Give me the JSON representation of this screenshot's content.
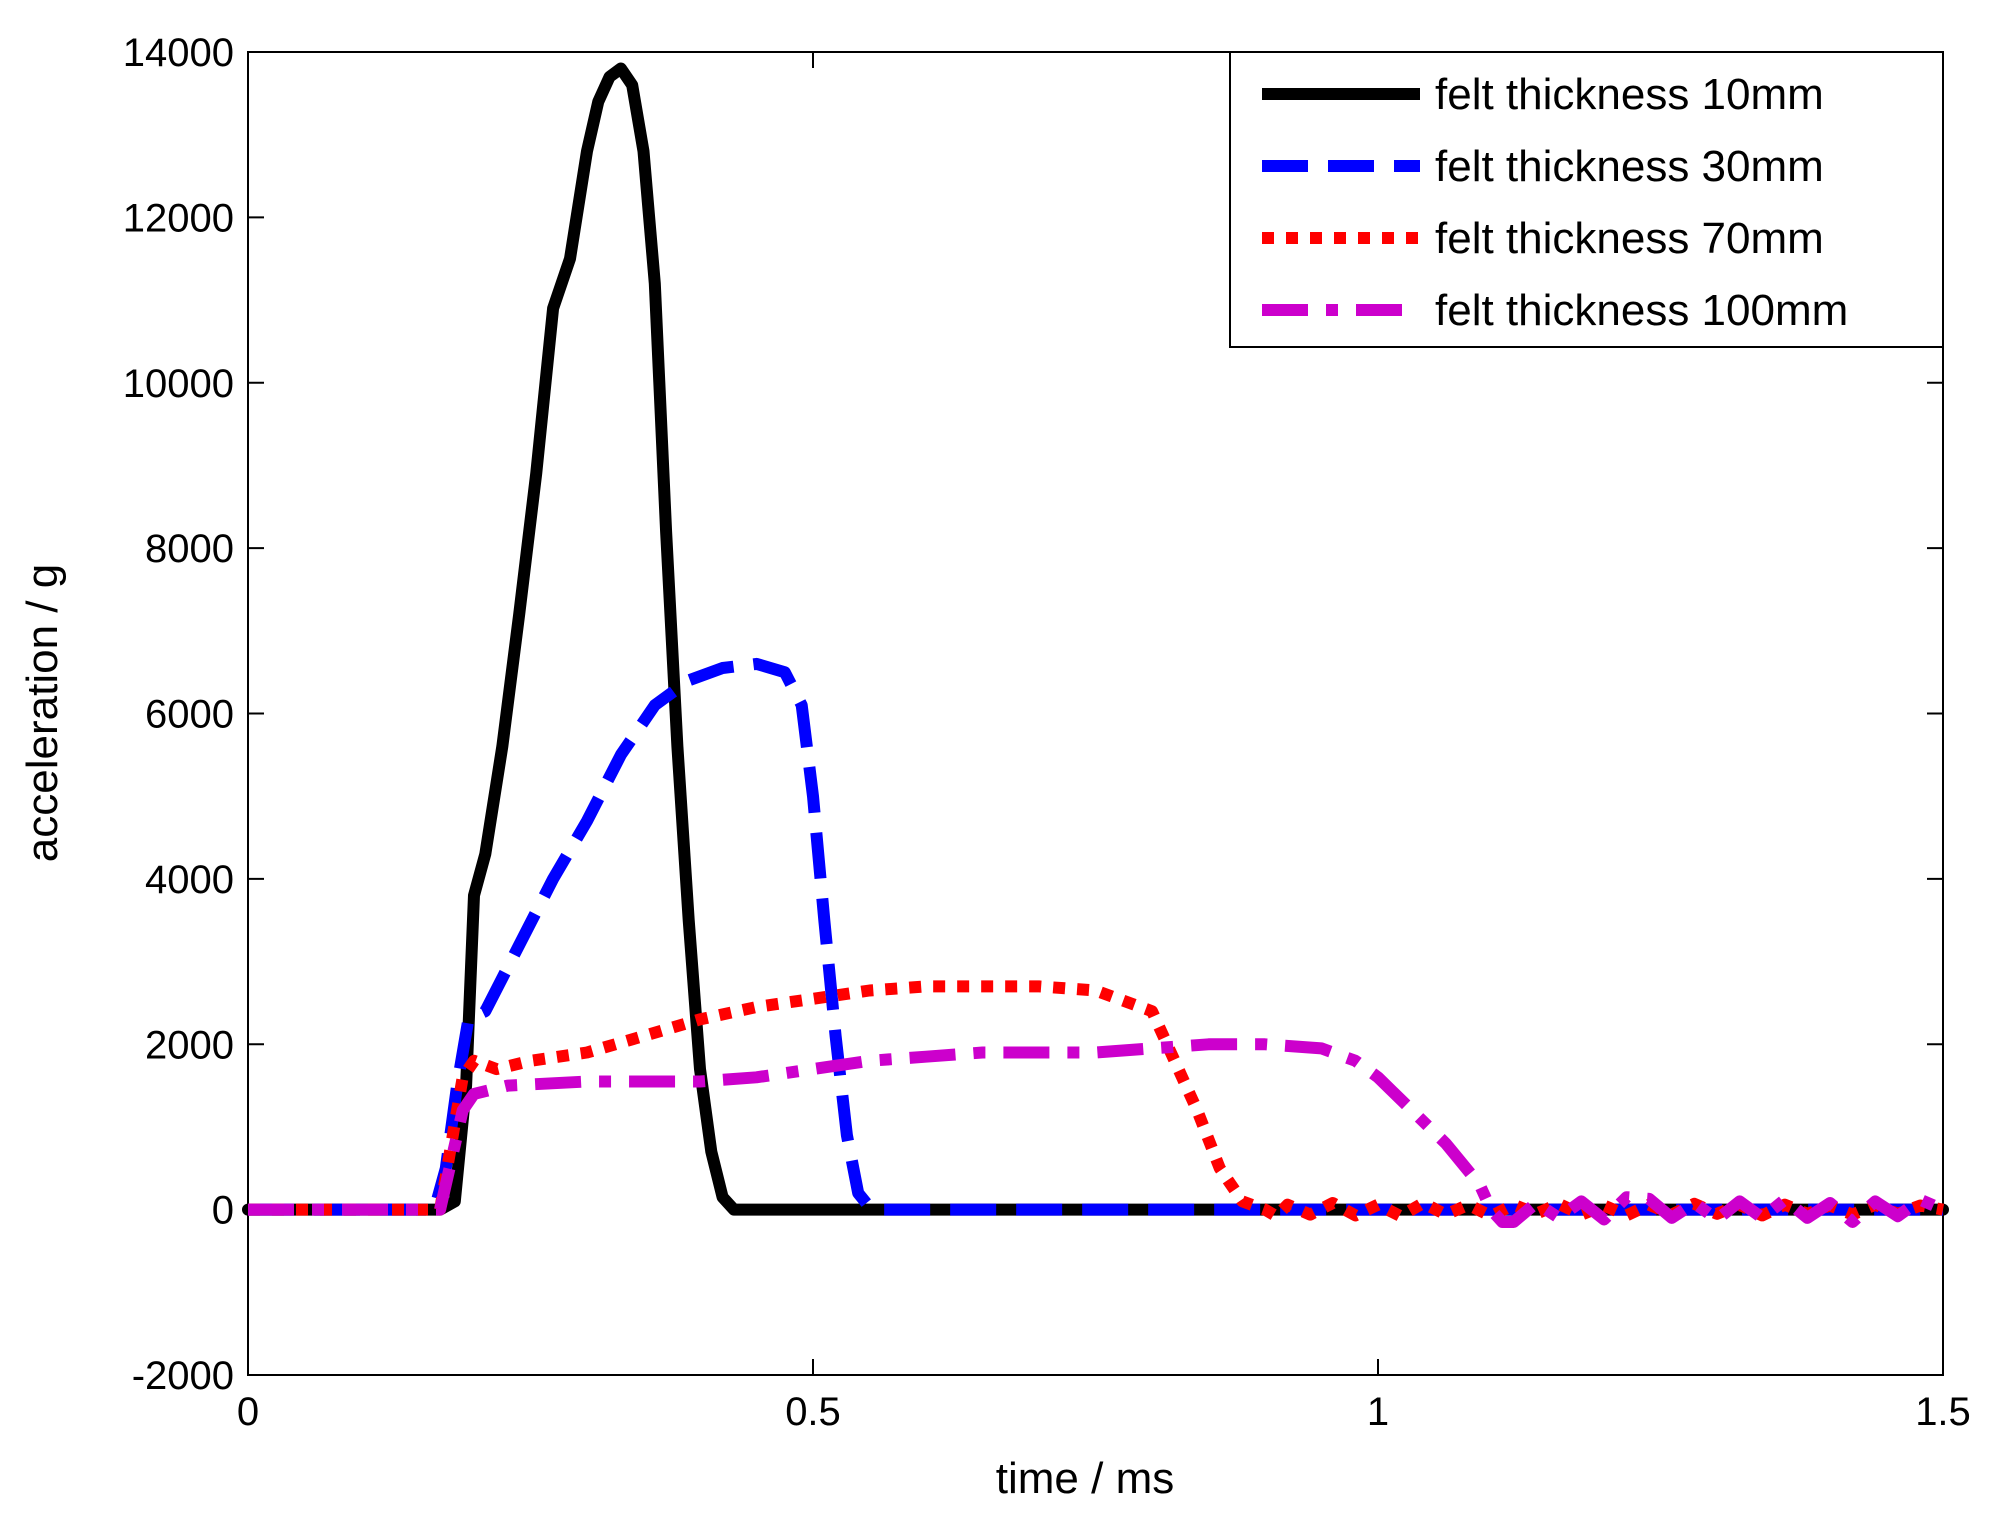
{
  "chart_data": {
    "type": "line",
    "title": "",
    "xlabel": "time  /  ms",
    "ylabel": "acceleration  /  g",
    "xlim": [
      0,
      1.5
    ],
    "ylim": [
      -2000,
      14000
    ],
    "xticks": [
      0,
      0.5,
      1,
      1.5
    ],
    "xtick_labels": [
      "0",
      "0.5",
      "1",
      "1.5"
    ],
    "yticks": [
      -2000,
      0,
      2000,
      4000,
      6000,
      8000,
      10000,
      12000,
      14000
    ],
    "ytick_labels": [
      "-2000",
      "0",
      "2000",
      "4000",
      "6000",
      "8000",
      "10000",
      "12000",
      "14000"
    ],
    "grid": false,
    "legend_position": "top-right",
    "series": [
      {
        "name": "felt thickness 10mm",
        "color": "#000000",
        "style": "solid",
        "x": [
          0,
          0.17,
          0.183,
          0.193,
          0.2,
          0.21,
          0.225,
          0.24,
          0.255,
          0.27,
          0.285,
          0.3,
          0.31,
          0.32,
          0.33,
          0.34,
          0.35,
          0.36,
          0.37,
          0.38,
          0.39,
          0.4,
          0.41,
          0.42,
          0.43,
          0.44,
          0.6,
          1.5
        ],
        "y": [
          0,
          0,
          100,
          1500,
          3800,
          4300,
          5600,
          7200,
          8900,
          10900,
          11500,
          12800,
          13400,
          13700,
          13800,
          13600,
          12800,
          11200,
          8200,
          5600,
          3500,
          1700,
          700,
          150,
          0,
          0,
          0,
          0
        ]
      },
      {
        "name": "felt thickness 30mm",
        "color": "#0000ff",
        "style": "dashed",
        "x": [
          0,
          0.165,
          0.175,
          0.185,
          0.195,
          0.21,
          0.24,
          0.27,
          0.3,
          0.33,
          0.36,
          0.39,
          0.42,
          0.45,
          0.475,
          0.49,
          0.5,
          0.51,
          0.52,
          0.53,
          0.54,
          0.55,
          0.56,
          0.57,
          1.5
        ],
        "y": [
          0,
          0,
          500,
          1500,
          2300,
          2400,
          3200,
          4000,
          4700,
          5500,
          6100,
          6400,
          6550,
          6600,
          6500,
          6100,
          5000,
          3500,
          2100,
          900,
          200,
          30,
          0,
          0,
          0
        ]
      },
      {
        "name": "felt thickness 70mm",
        "color": "#ff0000",
        "style": "dotted",
        "x": [
          0,
          0.17,
          0.18,
          0.19,
          0.2,
          0.22,
          0.25,
          0.3,
          0.35,
          0.4,
          0.45,
          0.5,
          0.55,
          0.6,
          0.65,
          0.7,
          0.75,
          0.8,
          0.82,
          0.84,
          0.86,
          0.88,
          0.9,
          0.91,
          0.92,
          0.94,
          0.96,
          0.98,
          1.0,
          1.02,
          1.04,
          1.06,
          1.08,
          1.1,
          1.12,
          1.14,
          1.16,
          1.18,
          1.2,
          1.22,
          1.24,
          1.26,
          1.28,
          1.3,
          1.32,
          1.34,
          1.36,
          1.38,
          1.4,
          1.42,
          1.44,
          1.46,
          1.48,
          1.5
        ],
        "y": [
          0,
          0,
          800,
          1600,
          1800,
          1700,
          1800,
          1900,
          2100,
          2300,
          2450,
          2550,
          2650,
          2700,
          2700,
          2700,
          2650,
          2400,
          1800,
          1200,
          500,
          100,
          0,
          -80,
          60,
          -60,
          80,
          -70,
          60,
          -80,
          80,
          -60,
          60,
          -80,
          60,
          -50,
          70,
          -60,
          50,
          -70,
          60,
          -60,
          70,
          -50,
          60,
          -70,
          60,
          -50,
          50,
          -60,
          60,
          -50,
          50,
          0
        ]
      },
      {
        "name": "felt thickness 100mm",
        "color": "#cc00cc",
        "style": "dashdot",
        "x": [
          0,
          0.17,
          0.18,
          0.19,
          0.2,
          0.23,
          0.3,
          0.35,
          0.4,
          0.45,
          0.5,
          0.55,
          0.6,
          0.65,
          0.7,
          0.75,
          0.8,
          0.85,
          0.9,
          0.95,
          0.98,
          1.0,
          1.03,
          1.06,
          1.09,
          1.1,
          1.11,
          1.12,
          1.14,
          1.16,
          1.18,
          1.2,
          1.22,
          1.24,
          1.26,
          1.28,
          1.3,
          1.32,
          1.34,
          1.36,
          1.38,
          1.4,
          1.42,
          1.44,
          1.46,
          1.48,
          1.5
        ],
        "y": [
          0,
          0,
          600,
          1200,
          1400,
          1500,
          1550,
          1550,
          1550,
          1600,
          1700,
          1800,
          1850,
          1900,
          1900,
          1900,
          1950,
          2000,
          2000,
          1950,
          1800,
          1600,
          1200,
          800,
          300,
          0,
          -150,
          -150,
          80,
          -100,
          100,
          -120,
          150,
          130,
          -100,
          80,
          -120,
          100,
          -100,
          120,
          -100,
          80,
          -150,
          100,
          -80,
          120,
          0
        ]
      }
    ]
  }
}
